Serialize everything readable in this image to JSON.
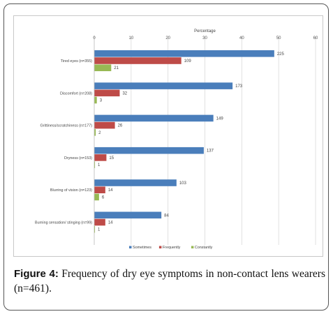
{
  "chart_data": {
    "type": "bar",
    "orientation": "horizontal",
    "title": "Percentage",
    "xlim": [
      0,
      60
    ],
    "xticks": [
      0,
      10,
      20,
      30,
      40,
      50,
      60
    ],
    "grid": true,
    "legend_position": "bottom",
    "categories": [
      "Tired eyes (n=355)",
      "Discomfort (n=208)",
      "Grittiness/scratchiness (n=177)",
      "Dryness (n=153)",
      "Blurring of vision (n=123)",
      "Burning sensation/ stinging (n=99)"
    ],
    "series": [
      {
        "name": "Sometimes",
        "color": "#4a7ebb",
        "values": [
          48.8,
          37.5,
          32.3,
          29.7,
          22.3,
          18.2
        ],
        "labels": [
          "225",
          "173",
          "149",
          "137",
          "103",
          "84"
        ]
      },
      {
        "name": "Frequently",
        "color": "#be4b48",
        "values": [
          23.6,
          6.9,
          5.6,
          3.3,
          3.0,
          3.0
        ],
        "labels": [
          "109",
          "32",
          "26",
          "15",
          "14",
          "14"
        ]
      },
      {
        "name": "Constantly",
        "color": "#98b954",
        "values": [
          4.6,
          0.7,
          0.4,
          0.2,
          1.3,
          0.2
        ],
        "labels": [
          "21",
          "3",
          "2",
          "1",
          "6",
          "1"
        ]
      }
    ]
  },
  "caption": {
    "label": "Figure 4:",
    "text": "Frequency of dry eye symptoms in non-contact lens wearers (n=461)."
  }
}
